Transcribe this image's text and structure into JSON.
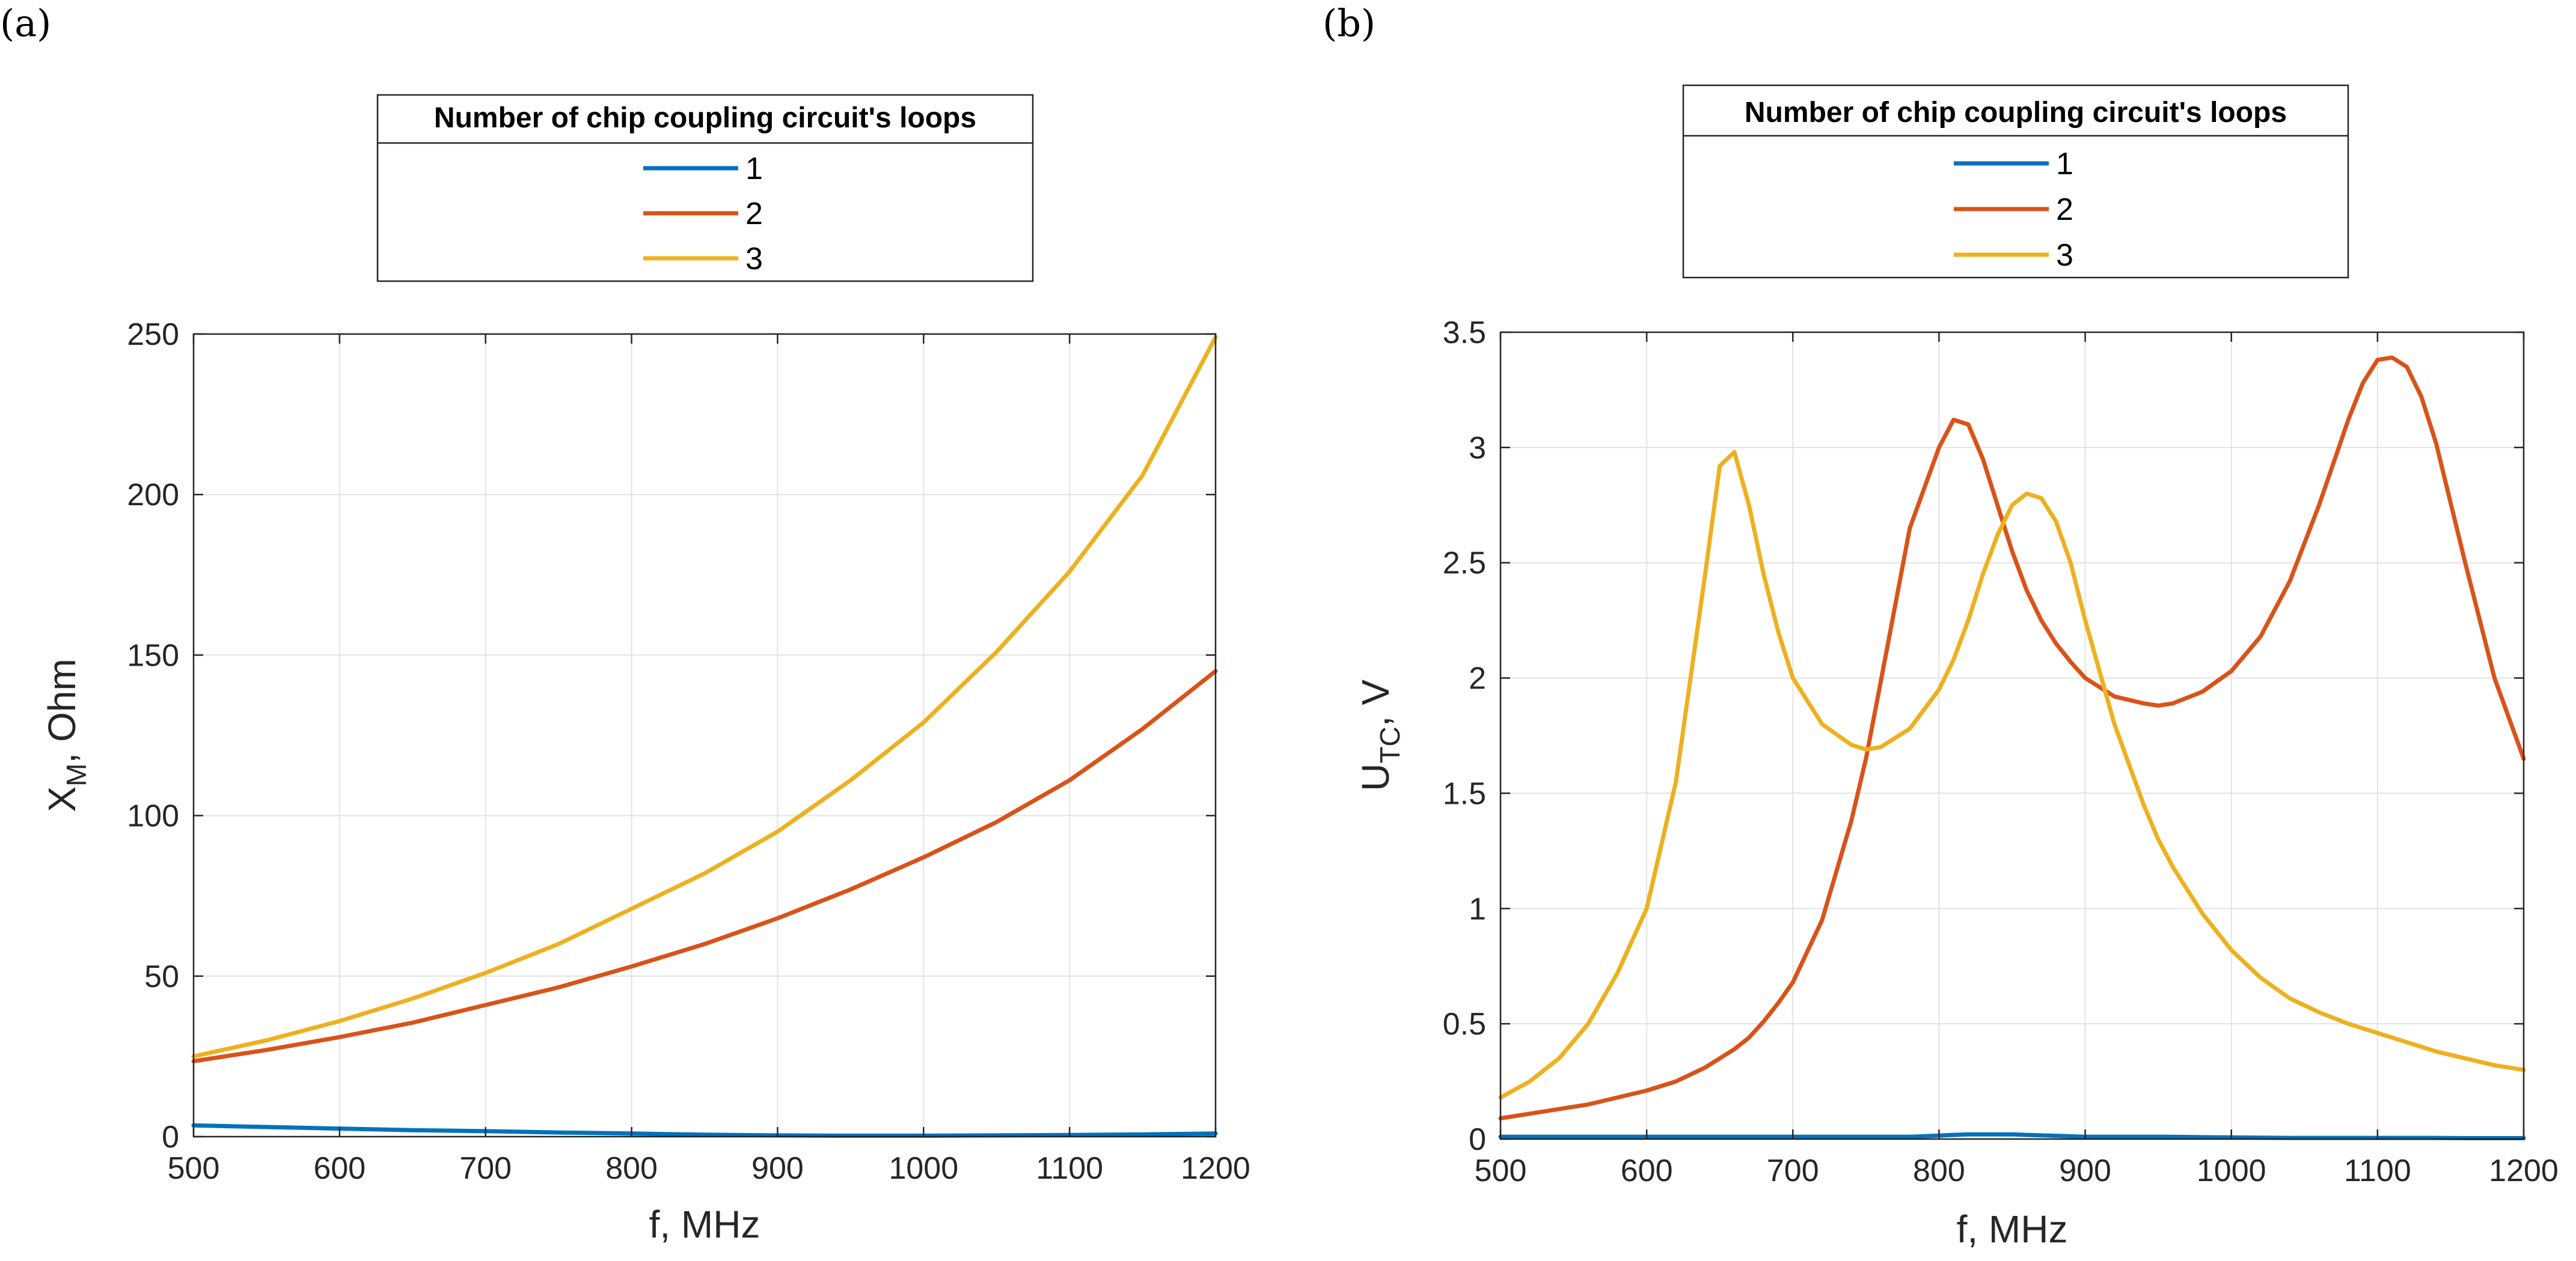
{
  "chart_data": [
    {
      "panel_label": "(a)",
      "type": "line",
      "title": "",
      "xlabel": "f, MHz",
      "ylabel": {
        "base": "X",
        "sub": "M",
        "rest": ", Ohm"
      },
      "xlim": [
        500,
        1200
      ],
      "ylim": [
        0,
        250
      ],
      "xticks": [
        500,
        600,
        700,
        800,
        900,
        1000,
        1100,
        1200
      ],
      "yticks": [
        0,
        50,
        100,
        150,
        200,
        250
      ],
      "grid": true,
      "legend": {
        "title": "Number of chip coupling circuit's loops",
        "location": "above-plot"
      },
      "x": [
        500,
        550,
        600,
        650,
        700,
        750,
        800,
        850,
        900,
        950,
        1000,
        1050,
        1100,
        1150,
        1200
      ],
      "series": [
        {
          "name": "1",
          "color": "#0072BD",
          "values": [
            3.5,
            3,
            2.5,
            2,
            1.7,
            1.3,
            1,
            0.6,
            0.4,
            0.3,
            0.3,
            0.4,
            0.5,
            0.7,
            1
          ]
        },
        {
          "name": "2",
          "color": "#D95319",
          "values": [
            23.5,
            27,
            31,
            35.5,
            41,
            46.5,
            53,
            60,
            68,
            77,
            87,
            98,
            111,
            127,
            145
          ]
        },
        {
          "name": "3",
          "color": "#EDB120",
          "values": [
            25,
            30,
            36,
            43,
            51,
            60,
            71,
            82,
            95,
            111,
            129,
            151,
            176,
            206,
            249
          ]
        }
      ]
    },
    {
      "panel_label": "(b)",
      "type": "line",
      "title": "",
      "xlabel": "f, MHz",
      "ylabel": {
        "base": "U",
        "sub": "TC",
        "rest": ", V"
      },
      "xlim": [
        500,
        1200
      ],
      "ylim": [
        0,
        3.5
      ],
      "xticks": [
        500,
        600,
        700,
        800,
        900,
        1000,
        1100,
        1200
      ],
      "yticks": [
        0,
        0.5,
        1,
        1.5,
        2,
        2.5,
        3,
        3.5
      ],
      "grid": true,
      "legend": {
        "title": "Number of chip coupling circuit's loops",
        "location": "above-plot"
      },
      "x": [
        500,
        520,
        540,
        560,
        580,
        600,
        620,
        640,
        650,
        660,
        670,
        680,
        690,
        700,
        720,
        740,
        750,
        760,
        780,
        800,
        810,
        820,
        830,
        840,
        850,
        860,
        870,
        880,
        890,
        900,
        920,
        940,
        950,
        960,
        980,
        1000,
        1020,
        1040,
        1060,
        1080,
        1090,
        1100,
        1110,
        1120,
        1130,
        1140,
        1160,
        1180,
        1200
      ],
      "series": [
        {
          "name": "1",
          "color": "#0072BD",
          "values": [
            0.01,
            0.01,
            0.01,
            0.01,
            0.01,
            0.01,
            0.01,
            0.01,
            0.01,
            0.01,
            0.01,
            0.01,
            0.01,
            0.01,
            0.01,
            0.01,
            0.01,
            0.01,
            0.01,
            0.015,
            0.018,
            0.02,
            0.02,
            0.02,
            0.02,
            0.018,
            0.016,
            0.014,
            0.012,
            0.01,
            0.01,
            0.01,
            0.01,
            0.01,
            0.008,
            0.007,
            0.006,
            0.005,
            0.005,
            0.005,
            0.005,
            0.005,
            0.005,
            0.005,
            0.005,
            0.005,
            0.004,
            0.004,
            0.004
          ]
        },
        {
          "name": "2",
          "color": "#D95319",
          "values": [
            0.09,
            0.11,
            0.13,
            0.15,
            0.18,
            0.21,
            0.25,
            0.31,
            0.35,
            0.39,
            0.44,
            0.51,
            0.59,
            0.68,
            0.95,
            1.38,
            1.65,
            1.98,
            2.65,
            3.0,
            3.12,
            3.1,
            2.95,
            2.75,
            2.55,
            2.38,
            2.25,
            2.15,
            2.07,
            2.0,
            1.92,
            1.89,
            1.88,
            1.89,
            1.94,
            2.03,
            2.18,
            2.42,
            2.75,
            3.12,
            3.28,
            3.38,
            3.39,
            3.35,
            3.22,
            3.02,
            2.5,
            2.0,
            1.65
          ]
        },
        {
          "name": "3",
          "color": "#EDB120",
          "values": [
            0.18,
            0.25,
            0.35,
            0.5,
            0.72,
            1.0,
            1.55,
            2.45,
            2.92,
            2.98,
            2.75,
            2.45,
            2.2,
            2.0,
            1.8,
            1.71,
            1.69,
            1.7,
            1.78,
            1.95,
            2.08,
            2.25,
            2.45,
            2.62,
            2.75,
            2.8,
            2.78,
            2.68,
            2.5,
            2.25,
            1.8,
            1.45,
            1.3,
            1.18,
            0.98,
            0.82,
            0.7,
            0.61,
            0.55,
            0.5,
            0.48,
            0.46,
            0.44,
            0.42,
            0.4,
            0.38,
            0.35,
            0.32,
            0.3
          ]
        }
      ]
    }
  ]
}
